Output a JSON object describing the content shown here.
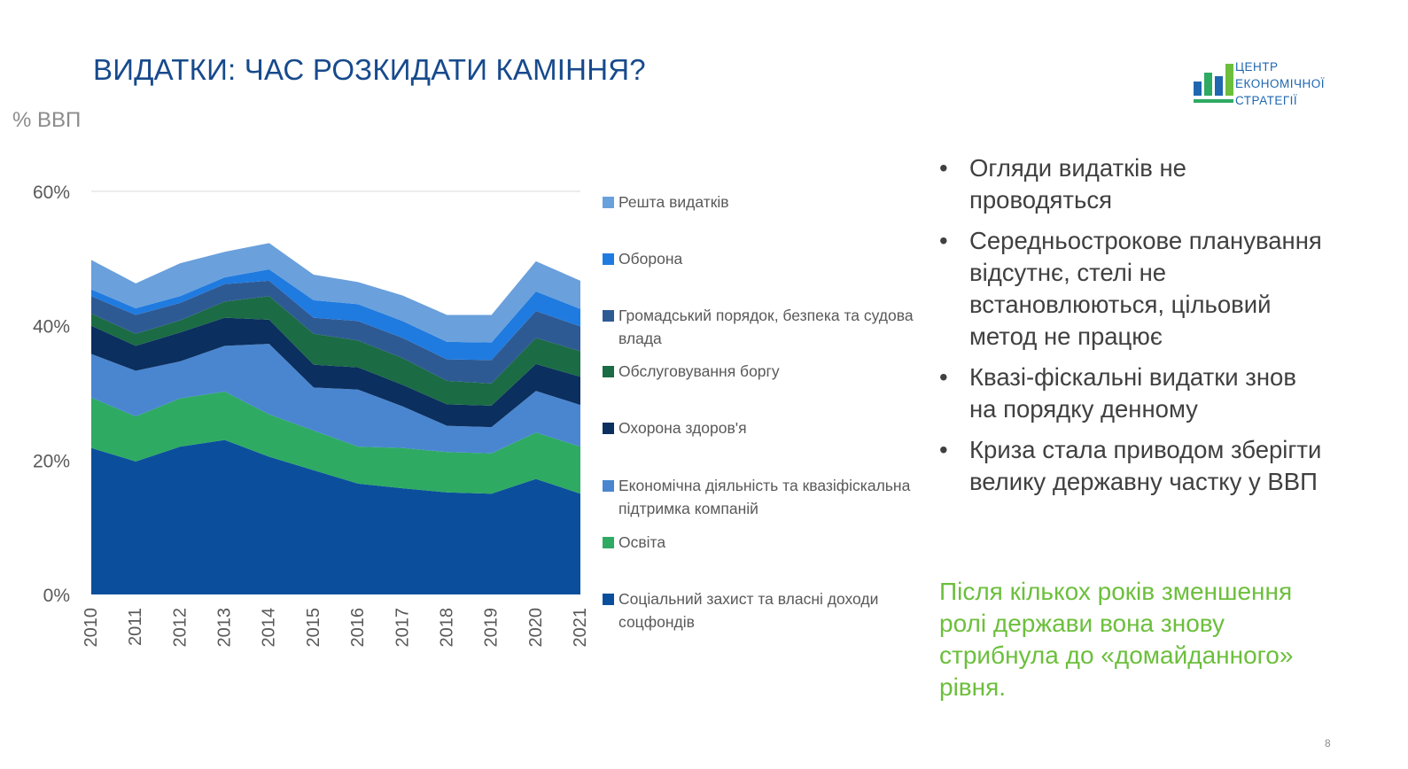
{
  "title": "ВИДАТКИ: ЧАС РОЗКИДАТИ КАМІННЯ?",
  "logo": {
    "line1": "ЦЕНТР",
    "line2": "ЕКОНОМІЧНОЇ",
    "line3": "СТРАТЕГІЇ",
    "icon": "bar-chart-logo-icon"
  },
  "bullets": [
    "Огляди видатків не проводяться",
    "Середньострокове планування відсутнє, стелі не встановлюються, цільовий метод не працює",
    "Квазі-фіскальні видатки знов на порядку денному",
    "Криза стала приводом зберігти велику державну частку у ВВП"
  ],
  "bullet_marker": "•",
  "conclusion": "Після кількох років зменшення ролі держави вона знову стрибнула до «домайданного» рівня.",
  "page_number": "8",
  "chart_data": {
    "type": "area",
    "stacked": true,
    "ylabel": "% ВВП",
    "ylim": [
      0,
      60
    ],
    "yticks": [
      0,
      20,
      40,
      60
    ],
    "ytick_labels": [
      "0%",
      "20%",
      "40%",
      "60%"
    ],
    "grid": "horizontal at 60% only",
    "legend_position": "right",
    "categories": [
      "2010",
      "2011",
      "2012",
      "2013",
      "2014",
      "2015",
      "2016",
      "2017",
      "2018",
      "2019",
      "2020",
      "2021"
    ],
    "series": [
      {
        "name": "Соціальний захист та власні доходи соцфондів",
        "color": "#0b4f9c",
        "values": [
          21.8,
          19.8,
          22.0,
          23.0,
          20.5,
          18.5,
          16.5,
          15.8,
          15.2,
          15.0,
          17.2,
          15.0
        ]
      },
      {
        "name": "Освіта",
        "color": "#2eaa63",
        "values": [
          7.5,
          6.7,
          7.2,
          7.2,
          6.3,
          5.9,
          5.5,
          6.0,
          6.0,
          6.0,
          6.9,
          7.0
        ]
      },
      {
        "name": "Економічна діяльність та квазіфіскальна підтримка компаній",
        "color": "#4a86d0",
        "values": [
          6.5,
          6.8,
          5.5,
          6.8,
          10.5,
          6.4,
          8.5,
          6.2,
          3.9,
          3.9,
          6.2,
          6.2
        ]
      },
      {
        "name": "Охорона здоров'я",
        "color": "#0b2f5e",
        "values": [
          4.2,
          3.7,
          4.3,
          4.2,
          3.6,
          3.4,
          3.3,
          3.2,
          3.2,
          3.2,
          4.0,
          4.2
        ]
      },
      {
        "name": "Обслуговування боргу",
        "color": "#1b6b45",
        "values": [
          1.8,
          1.8,
          1.8,
          2.4,
          3.5,
          4.6,
          4.0,
          4.0,
          3.5,
          3.3,
          3.9,
          3.8
        ]
      },
      {
        "name": "Громадський порядок, безпека та судова влада",
        "color": "#2e5a94",
        "values": [
          2.6,
          2.8,
          2.6,
          2.6,
          2.3,
          2.4,
          2.9,
          3.0,
          3.2,
          3.5,
          4.0,
          3.7
        ]
      },
      {
        "name": "Оборона",
        "color": "#1f7be0",
        "values": [
          1.0,
          1.0,
          1.0,
          1.0,
          1.7,
          2.6,
          2.5,
          2.5,
          2.6,
          2.6,
          2.9,
          2.6
        ]
      },
      {
        "name": "Решта видатків",
        "color": "#6aa0dc",
        "values": [
          4.4,
          3.7,
          4.9,
          3.8,
          3.9,
          3.8,
          3.3,
          3.8,
          4.0,
          4.1,
          4.5,
          4.2
        ]
      }
    ]
  }
}
